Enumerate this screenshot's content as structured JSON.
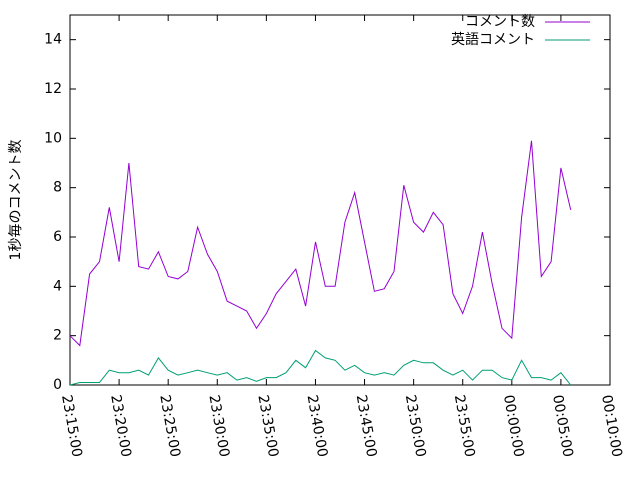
{
  "chart_data": {
    "type": "line",
    "ylabel": "1秒毎のコメント数",
    "x": [
      "23:15:00",
      "23:16:00",
      "23:17:00",
      "23:18:00",
      "23:19:00",
      "23:20:00",
      "23:21:00",
      "23:22:00",
      "23:23:00",
      "23:24:00",
      "23:25:00",
      "23:26:00",
      "23:27:00",
      "23:28:00",
      "23:29:00",
      "23:30:00",
      "23:31:00",
      "23:32:00",
      "23:33:00",
      "23:34:00",
      "23:35:00",
      "23:36:00",
      "23:37:00",
      "23:38:00",
      "23:39:00",
      "23:40:00",
      "23:41:00",
      "23:42:00",
      "23:43:00",
      "23:44:00",
      "23:45:00",
      "23:46:00",
      "23:47:00",
      "23:48:00",
      "23:49:00",
      "23:50:00",
      "23:51:00",
      "23:52:00",
      "23:53:00",
      "23:54:00",
      "23:55:00",
      "23:56:00",
      "23:57:00",
      "23:58:00",
      "23:59:00",
      "00:00:00",
      "00:01:00",
      "00:02:00",
      "00:03:00",
      "00:04:00",
      "00:05:00",
      "00:06:00"
    ],
    "series": [
      {
        "name": "コメント数",
        "color": "#9400d3",
        "values": [
          2.0,
          1.6,
          4.5,
          5.0,
          7.2,
          5.0,
          9.0,
          4.8,
          4.7,
          5.4,
          4.4,
          4.3,
          4.6,
          6.4,
          5.3,
          4.6,
          3.4,
          3.2,
          3.0,
          2.3,
          2.9,
          3.7,
          4.2,
          4.7,
          3.2,
          5.8,
          4.0,
          4.0,
          6.6,
          7.8,
          5.8,
          3.8,
          3.9,
          4.6,
          8.1,
          6.6,
          6.2,
          7.0,
          6.5,
          3.7,
          2.9,
          4.0,
          6.2,
          4.1,
          2.3,
          1.9,
          6.8,
          9.9,
          4.4,
          5.0,
          8.8,
          7.1
        ]
      },
      {
        "name": "英語コメント",
        "color": "#009e73",
        "values": [
          0.0,
          0.1,
          0.1,
          0.1,
          0.6,
          0.5,
          0.5,
          0.6,
          0.4,
          1.1,
          0.6,
          0.4,
          0.5,
          0.6,
          0.5,
          0.4,
          0.5,
          0.2,
          0.3,
          0.15,
          0.3,
          0.3,
          0.5,
          1.0,
          0.7,
          1.4,
          1.1,
          1.0,
          0.6,
          0.8,
          0.5,
          0.4,
          0.5,
          0.4,
          0.8,
          1.0,
          0.9,
          0.9,
          0.6,
          0.4,
          0.6,
          0.2,
          0.6,
          0.6,
          0.3,
          0.2,
          1.0,
          0.3,
          0.3,
          0.2,
          0.5,
          0.0
        ]
      }
    ],
    "xlim": [
      "23:15:00",
      "00:10:00"
    ],
    "xticks": [
      "23:15:00",
      "23:20:00",
      "23:25:00",
      "23:30:00",
      "23:35:00",
      "23:40:00",
      "23:45:00",
      "23:50:00",
      "23:55:00",
      "00:00:00",
      "00:05:00",
      "00:10:00"
    ],
    "ylim": [
      0,
      15
    ],
    "yticks": [
      0,
      2,
      4,
      6,
      8,
      10,
      12,
      14
    ],
    "legend": "top-right"
  }
}
